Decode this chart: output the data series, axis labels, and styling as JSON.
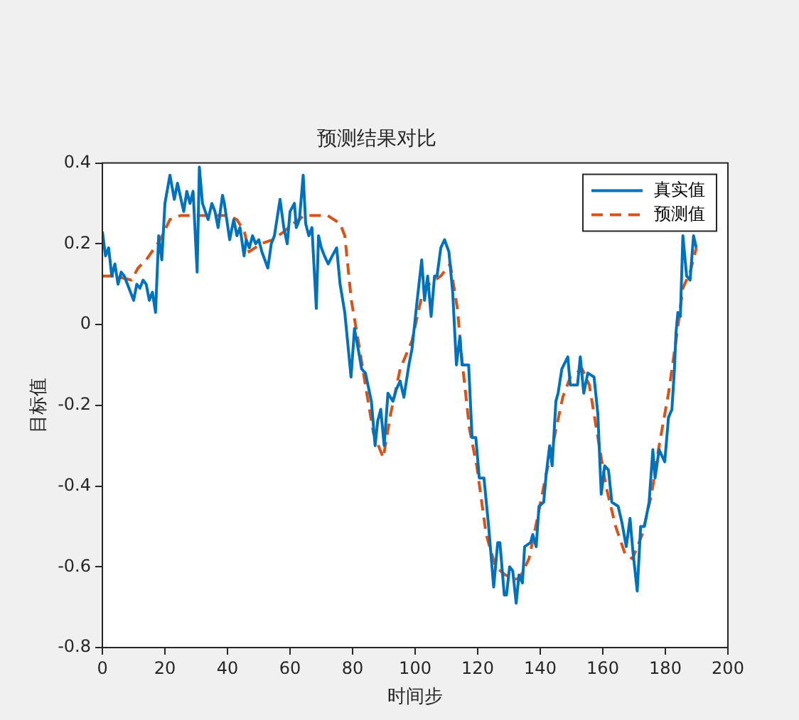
{
  "chart_data": {
    "type": "line",
    "title": "预测结果对比",
    "xlabel": "时间步",
    "ylabel": "目标值",
    "xlim": [
      0,
      200
    ],
    "xticks": [
      0,
      20,
      40,
      60,
      80,
      100,
      120,
      140,
      160,
      180,
      200
    ],
    "ylim": [
      -0.8,
      0.4
    ],
    "yticks": [
      -0.8,
      -0.6,
      -0.4,
      -0.2,
      0,
      0.2,
      0.4
    ],
    "grid": false,
    "legend": "top right",
    "marker": "none",
    "series": [
      {
        "name": "真实值",
        "color": "#0072bd",
        "line_style": "solid",
        "x": [
          0,
          1,
          2,
          3,
          4,
          5,
          6,
          7,
          8,
          9,
          10,
          11,
          12,
          13,
          14,
          15,
          16,
          17,
          18,
          19,
          20,
          21.6,
          23,
          24,
          26,
          27,
          28,
          29,
          30.3,
          31,
          32,
          33.8,
          35,
          36,
          37,
          38.4,
          39,
          40.7,
          42,
          43,
          44,
          45.3,
          46,
          47,
          48,
          49,
          50,
          51,
          52.9,
          54,
          55,
          56.8,
          58,
          59.1,
          60,
          61.4,
          62,
          63,
          64.2,
          65,
          66,
          67,
          68.4,
          69.1,
          70,
          71,
          72.2,
          73.5,
          74.9,
          76,
          77.5,
          78.5,
          79.5,
          80.6,
          82,
          82.9,
          84.1,
          86,
          87.2,
          88,
          89,
          90.1,
          91.3,
          92.9,
          94,
          95.2,
          96.4,
          98,
          99,
          100.5,
          102.1,
          103,
          104,
          105.1,
          106.2,
          107,
          108.2,
          109.4,
          110.8,
          112,
          113.2,
          114.3,
          115,
          117.1,
          118.2,
          119.4,
          120.5,
          122,
          123.5,
          125.1,
          126.4,
          127.1,
          128.5,
          129.2,
          130.2,
          131.2,
          132.3,
          133.2,
          134.3,
          135,
          136.9,
          137.6,
          138.7,
          139.6,
          141.1,
          141.9,
          143,
          143.8,
          145,
          145.7,
          146.9,
          148.8,
          149.6,
          151.9,
          152.8,
          153.9,
          155.2,
          157.2,
          158.4,
          159.5,
          160.6,
          161.8,
          162.9,
          164.9,
          166.1,
          167.5,
          168.7,
          169.6,
          171,
          172.1,
          173.3,
          174.8,
          176,
          176.7,
          178,
          179.8,
          181,
          182.1,
          182.9,
          183.4,
          184,
          184.8,
          185.6,
          186.8,
          187.9,
          189,
          189.9
        ],
        "values": [
          0.23,
          0.17,
          0.19,
          0.12,
          0.15,
          0.1,
          0.13,
          0.12,
          0.1,
          0.08,
          0.06,
          0.1,
          0.09,
          0.11,
          0.1,
          0.06,
          0.08,
          0.03,
          0.22,
          0.16,
          0.3,
          0.37,
          0.31,
          0.35,
          0.28,
          0.33,
          0.3,
          0.33,
          0.13,
          0.39,
          0.3,
          0.26,
          0.3,
          0.28,
          0.24,
          0.32,
          0.3,
          0.21,
          0.26,
          0.22,
          0.24,
          0.17,
          0.21,
          0.19,
          0.22,
          0.2,
          0.21,
          0.18,
          0.14,
          0.2,
          0.22,
          0.31,
          0.24,
          0.2,
          0.28,
          0.3,
          0.24,
          0.26,
          0.37,
          0.25,
          0.22,
          0.24,
          0.04,
          0.22,
          0.19,
          0.17,
          0.15,
          0.17,
          0.19,
          0.1,
          0.03,
          -0.05,
          -0.13,
          -0.01,
          -0.07,
          -0.11,
          -0.12,
          -0.19,
          -0.3,
          -0.24,
          -0.21,
          -0.3,
          -0.17,
          -0.19,
          -0.16,
          -0.14,
          -0.18,
          -0.1,
          -0.06,
          0.05,
          0.16,
          0.06,
          0.12,
          0.02,
          0.12,
          0.12,
          0.19,
          0.21,
          0.18,
          0.08,
          -0.1,
          -0.03,
          -0.1,
          -0.1,
          -0.28,
          -0.28,
          -0.38,
          -0.38,
          -0.5,
          -0.65,
          -0.54,
          -0.54,
          -0.67,
          -0.67,
          -0.6,
          -0.61,
          -0.69,
          -0.62,
          -0.64,
          -0.55,
          -0.54,
          -0.52,
          -0.55,
          -0.45,
          -0.44,
          -0.37,
          -0.3,
          -0.35,
          -0.19,
          -0.17,
          -0.11,
          -0.08,
          -0.15,
          -0.15,
          -0.08,
          -0.17,
          -0.12,
          -0.13,
          -0.22,
          -0.42,
          -0.35,
          -0.36,
          -0.44,
          -0.45,
          -0.49,
          -0.55,
          -0.48,
          -0.56,
          -0.66,
          -0.5,
          -0.5,
          -0.44,
          -0.31,
          -0.38,
          -0.31,
          -0.34,
          -0.23,
          -0.21,
          -0.11,
          -0.02,
          0.03,
          0.02,
          0.22,
          0.12,
          0.11,
          0.22,
          0.19
        ]
      },
      {
        "name": "预测值",
        "color": "#d95319",
        "line_style": "dashed",
        "x": [
          0,
          4,
          9.3,
          11.4,
          14,
          18.5,
          21.6,
          25,
          30,
          35,
          40,
          43,
          45.4,
          46.9,
          50.7,
          54.5,
          58,
          61,
          64.5,
          68.4,
          72,
          76,
          77.5,
          79.6,
          82,
          84.3,
          86.7,
          89.8,
          92.2,
          95.2,
          99,
          102.1,
          104.4,
          108.2,
          111.2,
          113.5,
          115,
          117.4,
          119.7,
          122.7,
          125.7,
          128.8,
          131.9,
          133.3,
          136.4,
          139.6,
          141.9,
          144.2,
          147.2,
          149.6,
          153.4,
          155.7,
          158,
          161,
          164.1,
          167.2,
          169.5,
          172.6,
          175.6,
          178,
          181,
          183.4,
          185.6,
          187.9,
          189.9
        ],
        "values": [
          0.12,
          0.12,
          0.11,
          0.14,
          0.16,
          0.21,
          0.26,
          0.27,
          0.27,
          0.27,
          0.27,
          0.26,
          0.23,
          0.18,
          0.2,
          0.21,
          0.23,
          0.25,
          0.27,
          0.27,
          0.27,
          0.25,
          0.22,
          0.06,
          -0.05,
          -0.16,
          -0.27,
          -0.33,
          -0.22,
          -0.11,
          -0.04,
          0.07,
          0.1,
          0.12,
          0.15,
          0.04,
          -0.09,
          -0.26,
          -0.35,
          -0.52,
          -0.6,
          -0.62,
          -0.63,
          -0.63,
          -0.58,
          -0.46,
          -0.37,
          -0.29,
          -0.18,
          -0.13,
          -0.11,
          -0.15,
          -0.26,
          -0.4,
          -0.5,
          -0.57,
          -0.58,
          -0.52,
          -0.42,
          -0.3,
          -0.17,
          -0.04,
          0.09,
          0.13,
          0.19
        ]
      }
    ]
  }
}
